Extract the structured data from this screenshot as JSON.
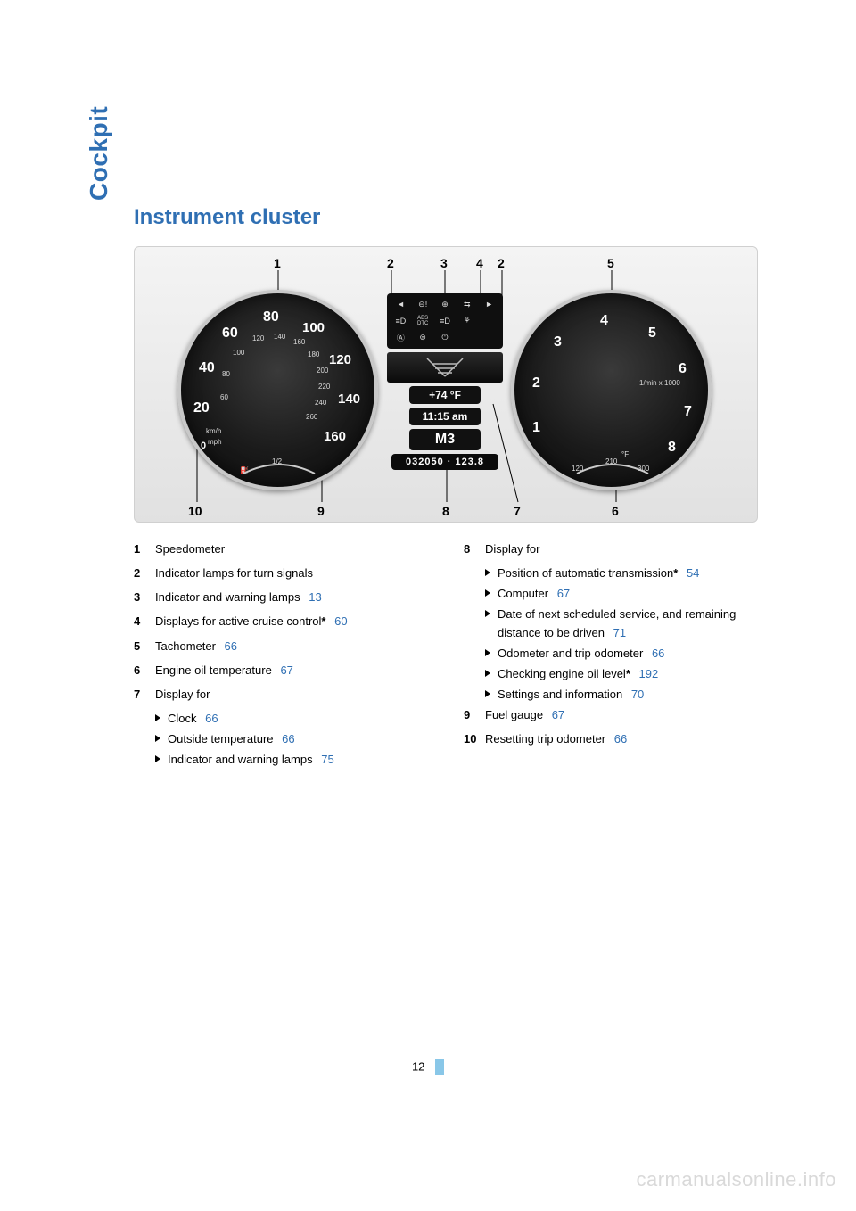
{
  "colors": {
    "accent_blue": "#2f6fb3",
    "link_blue": "#2f6fb3",
    "text": "#000000",
    "watermark": "#d9d9d9",
    "page_bar": "#89c7e8"
  },
  "side_label": "Cockpit",
  "heading": "Instrument cluster",
  "page_number": "12",
  "watermark": "carmanualsonline.info",
  "cluster": {
    "top_callouts": [
      "1",
      "2",
      "3",
      "4",
      "2",
      "5"
    ],
    "bottom_callouts": [
      "10",
      "9",
      "8",
      "7",
      "6"
    ],
    "speedo": {
      "outer": [
        "20",
        "40",
        "60",
        "80",
        "100",
        "120",
        "140",
        "160"
      ],
      "inner": [
        "60",
        "80",
        "100",
        "120",
        "140",
        "160",
        "180",
        "200",
        "220",
        "240",
        "260"
      ],
      "unit_top": "km/h",
      "unit_bot": "mph",
      "zero": "0"
    },
    "tach": {
      "nums": [
        "1",
        "2",
        "3",
        "4",
        "5",
        "6",
        "7",
        "8"
      ],
      "unit": "1/min x 1000"
    },
    "oil_temp_scale": [
      "120",
      "210",
      "300"
    ],
    "oil_temp_unit": "°F",
    "fuel": {
      "half": "1/2",
      "icon": "⛽"
    },
    "center": {
      "temp": "+74 °F",
      "clock": "11:15 am",
      "gear": "M3",
      "odo": "032050 · 123.8",
      "warn_icons": [
        "◄",
        "⊖!",
        "⊕",
        "⇆",
        "⊗",
        "►",
        "≡D",
        "ABS\nDTC",
        "≡D",
        "⚘",
        "",
        "Ⓐ",
        "⊜",
        "⏻",
        "",
        ""
      ]
    }
  },
  "left_items": [
    {
      "n": "1",
      "text": "Speedometer"
    },
    {
      "n": "2",
      "text": "Indicator lamps for turn signals"
    },
    {
      "n": "3",
      "text": "Indicator and warning lamps",
      "page": "13"
    },
    {
      "n": "4",
      "text": "Displays for active cruise control",
      "ast": true,
      "page": "60"
    },
    {
      "n": "5",
      "text": "Tachometer",
      "page": "66"
    },
    {
      "n": "6",
      "text": "Engine oil temperature",
      "page": "67"
    },
    {
      "n": "7",
      "text": "Display for",
      "subs": [
        {
          "text": "Clock",
          "page": "66"
        },
        {
          "text": "Outside temperature",
          "page": "66"
        },
        {
          "text": "Indicator and warning lamps",
          "page": "75"
        }
      ]
    }
  ],
  "right_items": [
    {
      "n": "8",
      "text": "Display for",
      "subs": [
        {
          "text": "Position of automatic transmission",
          "ast": true,
          "page": "54"
        },
        {
          "text": "Computer",
          "page": "67"
        },
        {
          "text": "Date of next scheduled service, and remaining distance to be driven",
          "page": "71"
        },
        {
          "text": "Odometer and trip odometer",
          "page": "66"
        },
        {
          "text": "Checking engine oil level",
          "ast": true,
          "page": "192"
        },
        {
          "text": "Settings and information",
          "page": "70"
        }
      ]
    },
    {
      "n": "9",
      "text": "Fuel gauge",
      "page": "67"
    },
    {
      "n": "10",
      "text": "Resetting trip odometer",
      "page": "66"
    }
  ]
}
